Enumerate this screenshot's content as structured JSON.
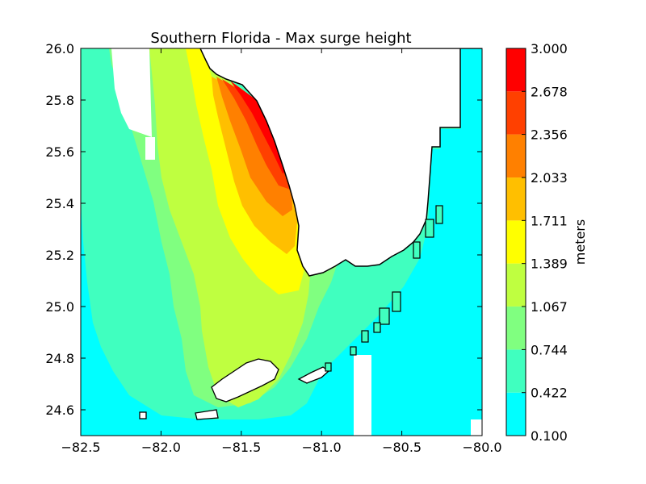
{
  "chart_data": {
    "type": "heatmap",
    "title": "Southern Florida - Max surge height",
    "xlabel": "",
    "ylabel": "",
    "xlim": [
      -82.5,
      -80.0
    ],
    "ylim": [
      24.5,
      26.0
    ],
    "x_ticks": [
      "−82.5",
      "−82.0",
      "−81.5",
      "−81.0",
      "−80.5",
      "−80.0"
    ],
    "x_tick_values": [
      -82.5,
      -82.0,
      -81.5,
      -81.0,
      -80.5,
      -80.0
    ],
    "y_ticks": [
      "26.0",
      "25.8",
      "25.6",
      "25.4",
      "25.2",
      "25.0",
      "24.8",
      "24.6"
    ],
    "y_tick_values": [
      26.0,
      25.8,
      25.6,
      25.4,
      25.2,
      25.0,
      24.8,
      24.6
    ],
    "colorbar": {
      "label": "meters",
      "levels": [
        "0.100",
        "0.422",
        "0.744",
        "1.067",
        "1.389",
        "1.711",
        "2.033",
        "2.356",
        "2.678",
        "3.000"
      ],
      "level_values": [
        0.1,
        0.422,
        0.744,
        1.067,
        1.389,
        1.711,
        2.033,
        2.356,
        2.678,
        3.0
      ],
      "colors": [
        "#00ffff",
        "#40ffbf",
        "#80ff80",
        "#bfff40",
        "#ffff00",
        "#ffbf00",
        "#ff8000",
        "#ff4000",
        "#ff0000"
      ]
    },
    "grid": false,
    "surge_peak": {
      "value_m": 3.0,
      "location": "southwest Florida coast near 25.6 N, -81.2"
    }
  }
}
